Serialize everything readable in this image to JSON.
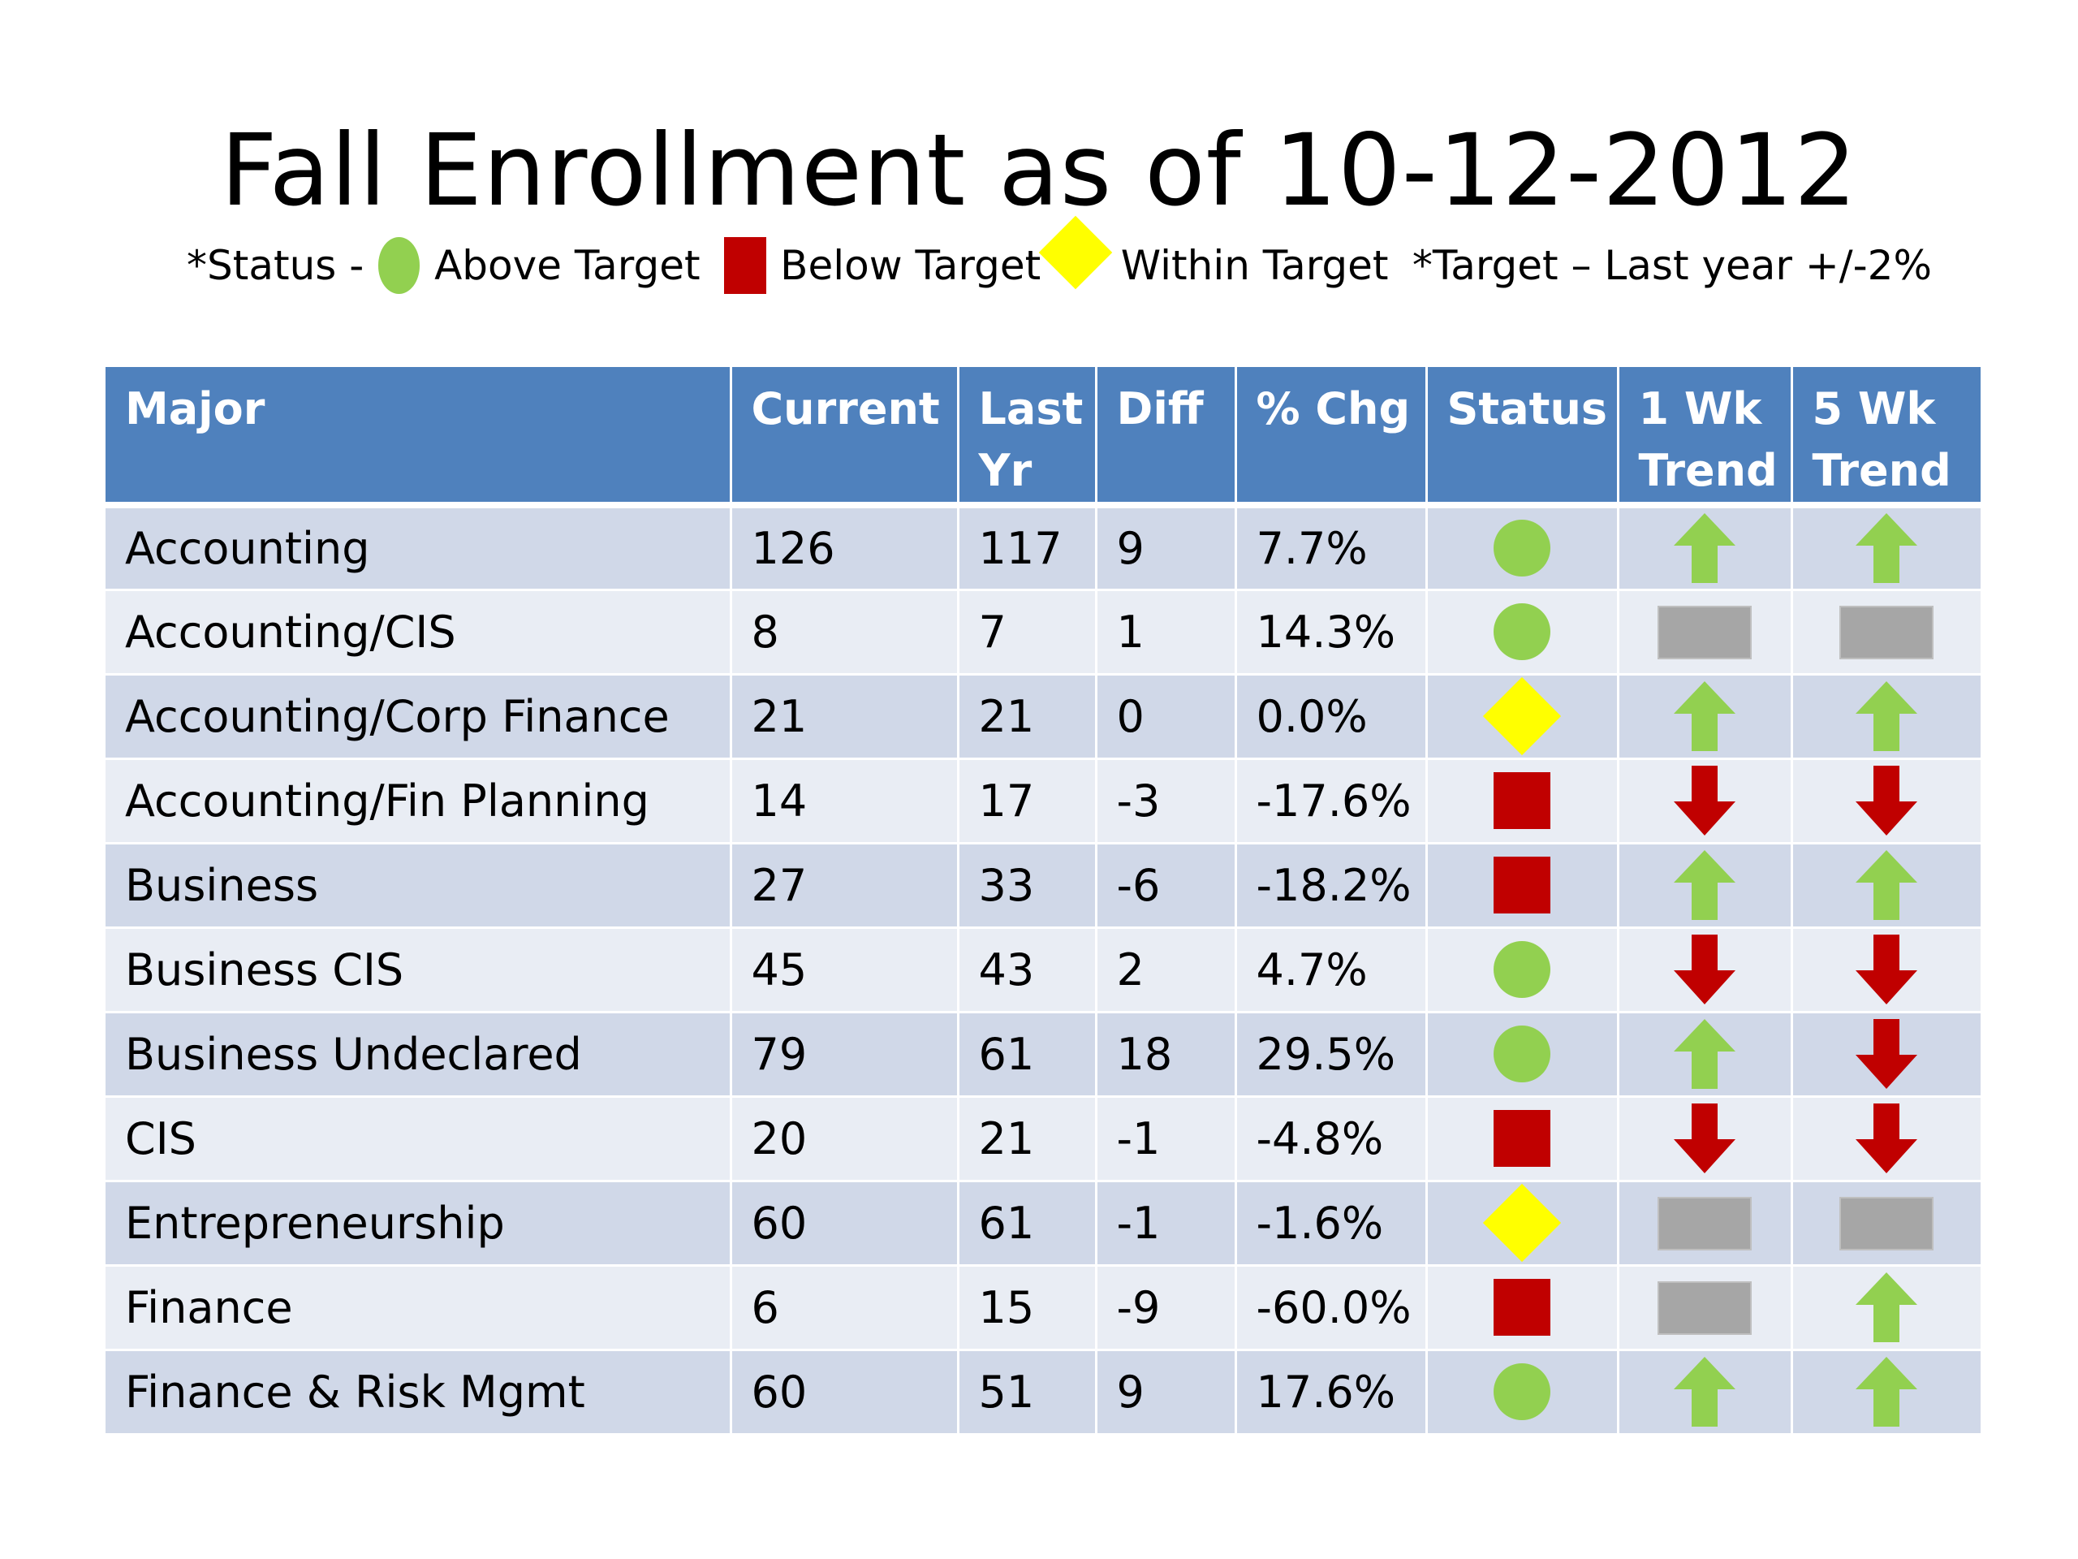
{
  "title": "Fall Enrollment as of 10-12-2012",
  "legend": {
    "status_prefix": "*Status -",
    "above_label": "Above Target",
    "below_label": "Below Target",
    "within_label": "Within Target",
    "target_note": "*Target – Last year +/-2%",
    "colors": {
      "above": "#92d050",
      "below": "#c00000",
      "within": "#ffff00",
      "flat": "#a6a6a6",
      "header": "#4f81bd"
    }
  },
  "table": {
    "headers": {
      "major": "Major",
      "current": "Current",
      "last_yr_1": "Last",
      "last_yr_2": "Yr",
      "diff": "Diff",
      "pct_chg": "% Chg",
      "status": "Status",
      "wk1_1": "1 Wk",
      "wk1_2": "Trend",
      "wk5_1": "5 Wk",
      "wk5_2": "Trend"
    },
    "rows": [
      {
        "major": "Accounting",
        "current": "126",
        "last_yr": "117",
        "diff": "9",
        "pct_chg": "7.7%",
        "status": "above",
        "trend_1wk": "up",
        "trend_5wk": "up"
      },
      {
        "major": "Accounting/CIS",
        "current": "8",
        "last_yr": "7",
        "diff": "1",
        "pct_chg": "14.3%",
        "status": "above",
        "trend_1wk": "flat",
        "trend_5wk": "flat"
      },
      {
        "major": "Accounting/Corp Finance",
        "current": "21",
        "last_yr": "21",
        "diff": "0",
        "pct_chg": "0.0%",
        "status": "within",
        "trend_1wk": "up",
        "trend_5wk": "up"
      },
      {
        "major": "Accounting/Fin Planning",
        "current": "14",
        "last_yr": "17",
        "diff": "-3",
        "pct_chg": "-17.6%",
        "status": "below",
        "trend_1wk": "down",
        "trend_5wk": "down"
      },
      {
        "major": "Business",
        "current": "27",
        "last_yr": "33",
        "diff": "-6",
        "pct_chg": "-18.2%",
        "status": "below",
        "trend_1wk": "up",
        "trend_5wk": "up"
      },
      {
        "major": "Business CIS",
        "current": "45",
        "last_yr": "43",
        "diff": "2",
        "pct_chg": "4.7%",
        "status": "above",
        "trend_1wk": "down",
        "trend_5wk": "down"
      },
      {
        "major": "Business Undeclared",
        "current": "79",
        "last_yr": "61",
        "diff": "18",
        "pct_chg": "29.5%",
        "status": "above",
        "trend_1wk": "up",
        "trend_5wk": "down"
      },
      {
        "major": "CIS",
        "current": "20",
        "last_yr": "21",
        "diff": "-1",
        "pct_chg": "-4.8%",
        "status": "below",
        "trend_1wk": "down",
        "trend_5wk": "down"
      },
      {
        "major": "Entrepreneurship",
        "current": "60",
        "last_yr": "61",
        "diff": "-1",
        "pct_chg": "-1.6%",
        "status": "within",
        "trend_1wk": "flat",
        "trend_5wk": "flat"
      },
      {
        "major": "Finance",
        "current": "6",
        "last_yr": "15",
        "diff": "-9",
        "pct_chg": "-60.0%",
        "status": "below",
        "trend_1wk": "flat",
        "trend_5wk": "up"
      },
      {
        "major": "Finance & Risk Mgmt",
        "current": "60",
        "last_yr": "51",
        "diff": "9",
        "pct_chg": "17.6%",
        "status": "above",
        "trend_1wk": "up",
        "trend_5wk": "up"
      }
    ]
  }
}
